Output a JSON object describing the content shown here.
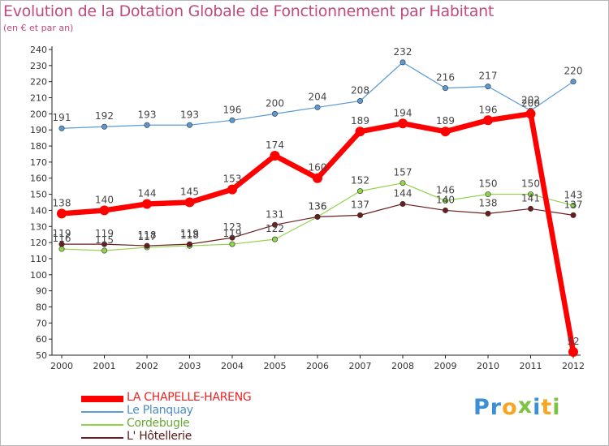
{
  "chart_data": {
    "type": "line",
    "title": "Evolution de la Dotation Globale de Fonctionnement par Habitant",
    "subtitle": "(en € et par an)",
    "x": [
      "2000",
      "2001",
      "2002",
      "2003",
      "2004",
      "2005",
      "2006",
      "2007",
      "2008",
      "2009",
      "2010",
      "2011",
      "2012"
    ],
    "ylim": [
      50,
      240
    ],
    "yticks": [
      50,
      60,
      70,
      80,
      90,
      100,
      110,
      120,
      130,
      140,
      150,
      160,
      170,
      180,
      190,
      200,
      210,
      220,
      230,
      240
    ],
    "grid": false,
    "legend_position": "bottom-left",
    "series": [
      {
        "name": "LA CHAPELLE-HARENG",
        "color": "#ff0000",
        "values": [
          138,
          140,
          144,
          145,
          153,
          174,
          160,
          189,
          194,
          189,
          196,
          200,
          52
        ]
      },
      {
        "name": "Le Planquay",
        "color": "#5b9bd5",
        "values": [
          191,
          192,
          193,
          193,
          196,
          200,
          204,
          208,
          232,
          216,
          217,
          202,
          220
        ]
      },
      {
        "name": "Cordebugle",
        "color": "#8fd44a",
        "values": [
          116,
          115,
          117,
          118,
          119,
          122,
          136,
          152,
          157,
          146,
          150,
          150,
          143
        ]
      },
      {
        "name": "L' Hôtellerie",
        "color": "#6b1d1d",
        "values": [
          119,
          119,
          118,
          119,
          123,
          131,
          136,
          137,
          144,
          140,
          138,
          141,
          137
        ]
      }
    ]
  },
  "logo": {
    "letters": [
      "P",
      "r",
      "o",
      "x",
      "i",
      "t",
      "i"
    ],
    "colors": [
      "#3a8fd6",
      "#3a8fd6",
      "#f5a623",
      "#7cc243",
      "#3a8fd6",
      "#f5a623",
      "#7cc243"
    ]
  }
}
